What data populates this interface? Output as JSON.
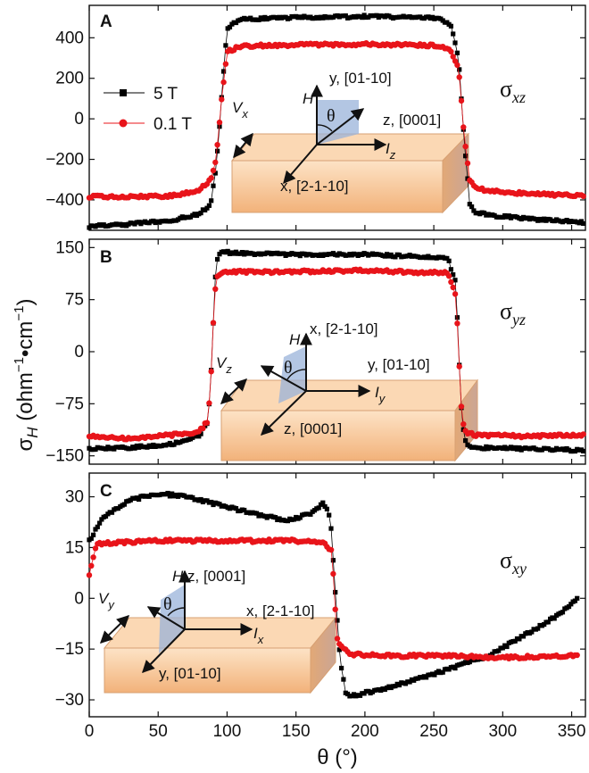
{
  "chart_data": [
    {
      "type": "line",
      "panel": "A",
      "title": "",
      "component_label": {
        "base": "σ",
        "sub": "xz"
      },
      "xlabel": "θ (°)",
      "ylabel": "σH (ohm−1•cm−1)",
      "xlim": [
        0,
        360
      ],
      "ylim": [
        -550,
        560
      ],
      "xticks": [
        0,
        50,
        100,
        150,
        200,
        250,
        300,
        350
      ],
      "yticks": [
        -400,
        -200,
        0,
        200,
        400
      ],
      "ytick_labels": [
        "−400",
        "−200",
        "0",
        "200",
        "400"
      ],
      "legend": {
        "position": "middle-left",
        "entries": [
          "5 T",
          "0.1 T"
        ]
      },
      "series": [
        {
          "name": "5 T",
          "color": "#000000",
          "marker": "square",
          "x": [
            0,
            30,
            60,
            80,
            88,
            92,
            96,
            100,
            110,
            150,
            200,
            250,
            262,
            268,
            272,
            276,
            280,
            290,
            320,
            359
          ],
          "values": [
            -530,
            -520,
            -500,
            -470,
            -420,
            -250,
            100,
            450,
            490,
            500,
            505,
            500,
            470,
            300,
            -100,
            -420,
            -460,
            -475,
            -495,
            -510
          ]
        },
        {
          "name": "0.1 T",
          "color": "#e8141a",
          "marker": "circle",
          "x": [
            0,
            30,
            60,
            80,
            88,
            92,
            96,
            100,
            110,
            150,
            200,
            250,
            262,
            268,
            272,
            276,
            280,
            290,
            320,
            359
          ],
          "values": [
            -385,
            -385,
            -380,
            -350,
            -300,
            -200,
            100,
            330,
            360,
            365,
            368,
            362,
            340,
            250,
            -80,
            -300,
            -340,
            -355,
            -370,
            -380
          ]
        }
      ],
      "annotations": {
        "voltage": {
          "base": "V",
          "sub": "x"
        },
        "current": {
          "base": "I",
          "sub": "z"
        },
        "axis_vertical": "y, [01-10]",
        "axis_right": "z, [0001]",
        "axis_front": "x, [2-1-10]",
        "field": "H",
        "angle": "θ"
      }
    },
    {
      "type": "line",
      "panel": "B",
      "title": "",
      "component_label": {
        "base": "σ",
        "sub": "yz"
      },
      "xlim": [
        0,
        360
      ],
      "ylim": [
        -162,
        162
      ],
      "xticks": [
        0,
        50,
        100,
        150,
        200,
        250,
        300,
        350
      ],
      "yticks": [
        -150,
        -75,
        0,
        75,
        150
      ],
      "ytick_labels": [
        "−150",
        "−75",
        "0",
        "75",
        "150"
      ],
      "series": [
        {
          "name": "5 T",
          "color": "#000000",
          "marker": "square",
          "x": [
            0,
            30,
            60,
            80,
            86,
            88,
            90,
            92,
            95,
            100,
            140,
            200,
            260,
            266,
            268,
            270,
            272,
            275,
            280,
            320,
            359
          ],
          "values": [
            -140,
            -138,
            -133,
            -120,
            -100,
            -50,
            40,
            130,
            145,
            143,
            140,
            140,
            135,
            100,
            0,
            -80,
            -125,
            -135,
            -138,
            -140,
            -142
          ]
        },
        {
          "name": "0.1 T",
          "color": "#e8141a",
          "marker": "circle",
          "x": [
            0,
            30,
            60,
            80,
            86,
            88,
            90,
            92,
            95,
            100,
            140,
            200,
            260,
            266,
            268,
            270,
            272,
            275,
            280,
            320,
            359
          ],
          "values": [
            -122,
            -125,
            -120,
            -115,
            -100,
            -50,
            40,
            105,
            112,
            115,
            115,
            117,
            113,
            80,
            0,
            -80,
            -113,
            -117,
            -120,
            -122,
            -120
          ]
        }
      ],
      "annotations": {
        "voltage": {
          "base": "V",
          "sub": "z"
        },
        "current": {
          "base": "I",
          "sub": "y"
        },
        "axis_vertical": "x, [2-1-10]",
        "axis_right": "y, [01-10]",
        "axis_front": "z, [0001]",
        "field": "H",
        "angle": "θ"
      }
    },
    {
      "type": "line",
      "panel": "C",
      "title": "",
      "component_label": {
        "base": "σ",
        "sub": "xy"
      },
      "xlim": [
        0,
        360
      ],
      "ylim": [
        -35,
        37
      ],
      "xticks": [
        0,
        50,
        100,
        150,
        200,
        250,
        300,
        350
      ],
      "xtick_labels": [
        "0",
        "50",
        "100",
        "150",
        "200",
        "250",
        "300",
        "350"
      ],
      "yticks": [
        -30,
        -15,
        0,
        15,
        30
      ],
      "ytick_labels": [
        "−30",
        "−15",
        "0",
        "15",
        "30"
      ],
      "series": [
        {
          "name": "5 T",
          "color": "#000000",
          "marker": "square",
          "x": [
            0,
            10,
            30,
            50,
            70,
            100,
            130,
            145,
            160,
            170,
            175,
            178,
            182,
            186,
            190,
            200,
            230,
            260,
            290,
            320,
            340,
            355
          ],
          "values": [
            17,
            24,
            29,
            31,
            30,
            27,
            24,
            23,
            25,
            28,
            24,
            5,
            -18,
            -28,
            -29,
            -28,
            -25,
            -21,
            -17,
            -10,
            -5,
            0
          ]
        },
        {
          "name": "0.1 T",
          "color": "#e8141a",
          "marker": "circle",
          "x": [
            0,
            5,
            20,
            50,
            100,
            150,
            170,
            176,
            178,
            180,
            184,
            190,
            220,
            260,
            300,
            355
          ],
          "values": [
            7,
            16,
            16.5,
            17,
            17,
            17,
            16.5,
            14,
            0,
            -12,
            -15,
            -16.5,
            -17,
            -17,
            -17.5,
            -17
          ]
        }
      ],
      "annotations": {
        "voltage": {
          "base": "V",
          "sub": "y"
        },
        "current": {
          "base": "I",
          "sub": "x"
        },
        "axis_vertical": "z, [0001]",
        "axis_right": "x, [2-1-10]",
        "axis_front": "y, [01-10]",
        "field": "H",
        "angle": "θ"
      }
    }
  ],
  "axis_titles": {
    "x": "θ (°)",
    "y_base": "σ",
    "y_sub": "H",
    "y_unit_open": " (ohm",
    "y_exp1": "−1",
    "y_dot": "•cm",
    "y_exp2": "−1",
    "y_close": ")"
  },
  "colors": {
    "black_series": "#000000",
    "red_series": "#e8141a",
    "block_face": "#f6c89a",
    "plane": "#9ab3d9"
  }
}
